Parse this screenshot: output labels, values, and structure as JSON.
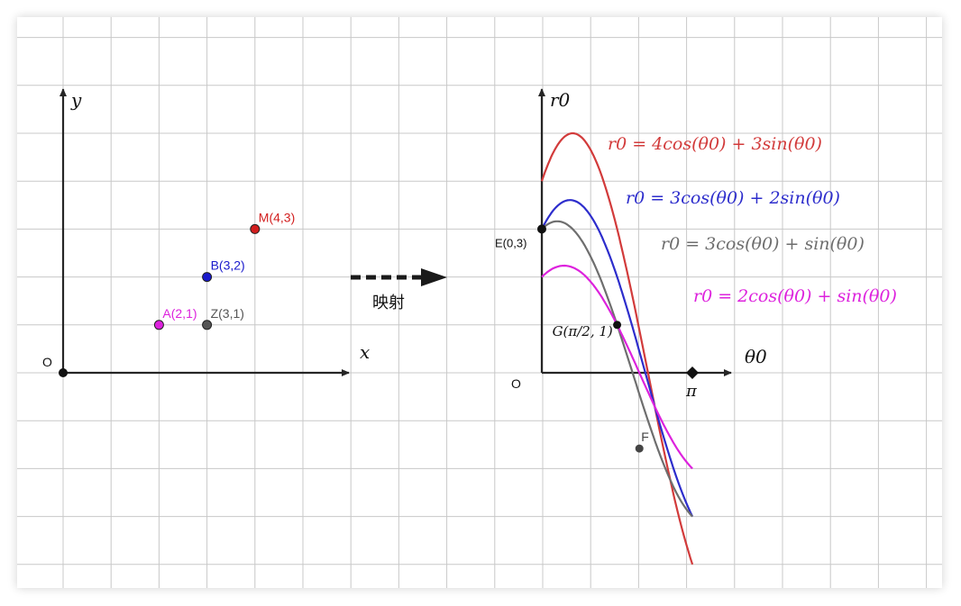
{
  "colors": {
    "grid": "#c8c8c8",
    "axis": "#262626",
    "red": "#d23b3b",
    "blue": "#2d2dcc",
    "gray": "#6e6e6e",
    "magenta": "#dd22dd",
    "black": "#111111"
  },
  "left_panel": {
    "x_axis_label": "x",
    "y_axis_label": "y",
    "origin_label": "O",
    "points": [
      {
        "label": "A(2,1)",
        "x": 2,
        "y": 1,
        "color": "#dd22dd"
      },
      {
        "label": "Z(3,1)",
        "x": 3,
        "y": 1,
        "color": "#555555"
      },
      {
        "label": "B(3,2)",
        "x": 3,
        "y": 2,
        "color": "#1a1acc"
      },
      {
        "label": "M(4,3)",
        "x": 4,
        "y": 3,
        "color": "#d21e1e"
      }
    ]
  },
  "mapping_arrow": {
    "label": "映射"
  },
  "right_panel": {
    "h_axis_label": "θ0",
    "v_axis_label": "r0",
    "origin_label": "O",
    "pi_label": "π",
    "curves": [
      {
        "equation": "r0 = 4cos(θ0) + 3sin(θ0)",
        "a": 4,
        "b": 3,
        "color": "#d23b3b"
      },
      {
        "equation": "r0 = 3cos(θ0) + 2sin(θ0)",
        "a": 3,
        "b": 2,
        "color": "#2d2dcc"
      },
      {
        "equation": "r0 = 3cos(θ0) + sin(θ0)",
        "a": 3,
        "b": 1,
        "color": "#6e6e6e"
      },
      {
        "equation": "r0 = 2cos(θ0) + sin(θ0)",
        "a": 2,
        "b": 1,
        "color": "#dd22dd"
      }
    ],
    "points": [
      {
        "label": "E(0,3)",
        "theta": 0,
        "r": 3,
        "color": "#111111"
      },
      {
        "label": "G(π/2, 1)",
        "theta": 1.5708,
        "r": 1,
        "color": "#111111"
      },
      {
        "label": "F",
        "theta": 2.0344,
        "r": -1.581,
        "color": "#444444"
      }
    ]
  }
}
